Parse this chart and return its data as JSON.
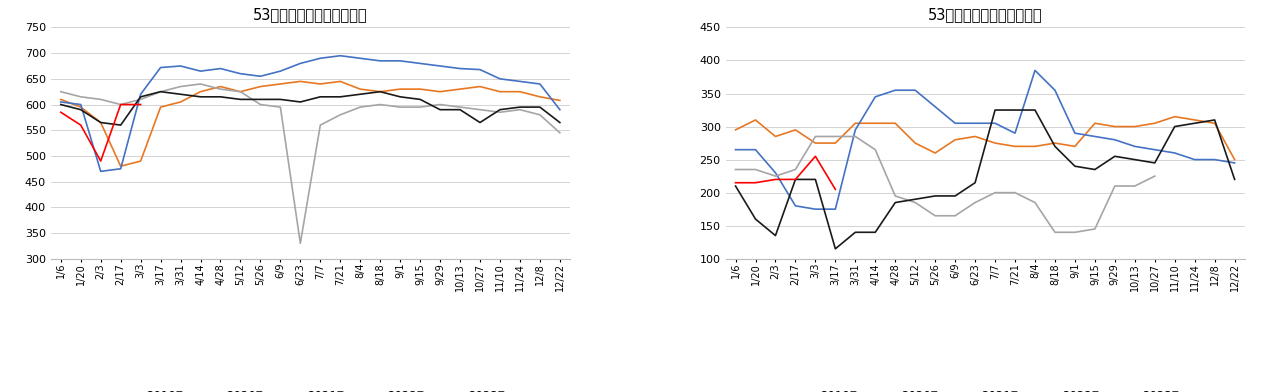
{
  "title1": "53家样本炼焦煤矿原煤产量",
  "title2": "53家样本煤矿炼焦原煤库存",
  "colors": {
    "2019年": "#E87722",
    "2020年": "#4472C4",
    "2021年": "#A5A5A5",
    "2022年": "#1A1A1A",
    "2023年": "#FF0000"
  },
  "xtick_labels": [
    "1/6",
    "1/20",
    "2/3",
    "2/17",
    "3/3",
    "3/17",
    "3/31",
    "4/14",
    "4/28",
    "5/12",
    "5/26",
    "6/9",
    "6/23",
    "7/7",
    "7/21",
    "8/4",
    "8/18",
    "9/1",
    "9/15",
    "9/29",
    "10/13",
    "10/27",
    "11/10",
    "11/24",
    "12/8",
    "12/22"
  ],
  "chart1": {
    "ylim": [
      300,
      750
    ],
    "yticks": [
      300,
      350,
      400,
      450,
      500,
      550,
      600,
      650,
      700,
      750
    ],
    "2019年": [
      610,
      595,
      565,
      480,
      490,
      595,
      605,
      625,
      635,
      625,
      635,
      640,
      645,
      640,
      645,
      630,
      625,
      630,
      630,
      625,
      630,
      635,
      625,
      625,
      615,
      608
    ],
    "2020年": [
      605,
      600,
      470,
      475,
      620,
      672,
      675,
      665,
      670,
      660,
      655,
      665,
      680,
      690,
      695,
      690,
      685,
      685,
      680,
      675,
      670,
      668,
      650,
      645,
      640,
      590
    ],
    "2021年": [
      625,
      615,
      610,
      600,
      610,
      625,
      635,
      640,
      630,
      625,
      600,
      595,
      330,
      560,
      580,
      595,
      600,
      595,
      595,
      600,
      595,
      590,
      585,
      590,
      580,
      545
    ],
    "2022年": [
      600,
      590,
      565,
      560,
      615,
      625,
      620,
      615,
      615,
      610,
      610,
      610,
      605,
      615,
      615,
      620,
      625,
      615,
      610,
      590,
      590,
      565,
      590,
      595,
      595,
      565
    ],
    "2023年": [
      585,
      560,
      490,
      600,
      600,
      null,
      null,
      null,
      null,
      null,
      null,
      null,
      null,
      null,
      null,
      null,
      null,
      null,
      null,
      null,
      null,
      null,
      null,
      null,
      null,
      null
    ]
  },
  "chart2": {
    "ylim": [
      100,
      450
    ],
    "yticks": [
      100,
      150,
      200,
      250,
      300,
      350,
      400,
      450
    ],
    "2019年": [
      295,
      310,
      285,
      295,
      275,
      275,
      305,
      305,
      305,
      275,
      260,
      280,
      285,
      275,
      270,
      270,
      275,
      270,
      305,
      300,
      300,
      305,
      315,
      310,
      305,
      250
    ],
    "2020年": [
      265,
      265,
      230,
      180,
      175,
      175,
      295,
      345,
      355,
      355,
      330,
      305,
      305,
      305,
      290,
      385,
      355,
      290,
      285,
      280,
      270,
      265,
      260,
      250,
      250,
      245
    ],
    "2021年": [
      235,
      235,
      225,
      235,
      285,
      285,
      285,
      265,
      195,
      185,
      165,
      165,
      185,
      200,
      200,
      185,
      140,
      140,
      145,
      210,
      210,
      225,
      null,
      null,
      null,
      null
    ],
    "2022年": [
      210,
      160,
      135,
      220,
      220,
      115,
      140,
      140,
      185,
      190,
      195,
      195,
      215,
      325,
      325,
      325,
      270,
      240,
      235,
      255,
      250,
      245,
      300,
      305,
      310,
      220
    ],
    "2023年": [
      215,
      215,
      220,
      220,
      255,
      205,
      null,
      null,
      null,
      null,
      null,
      null,
      null,
      null,
      null,
      null,
      null,
      null,
      null,
      null,
      null,
      null,
      null,
      null,
      null,
      null
    ]
  }
}
